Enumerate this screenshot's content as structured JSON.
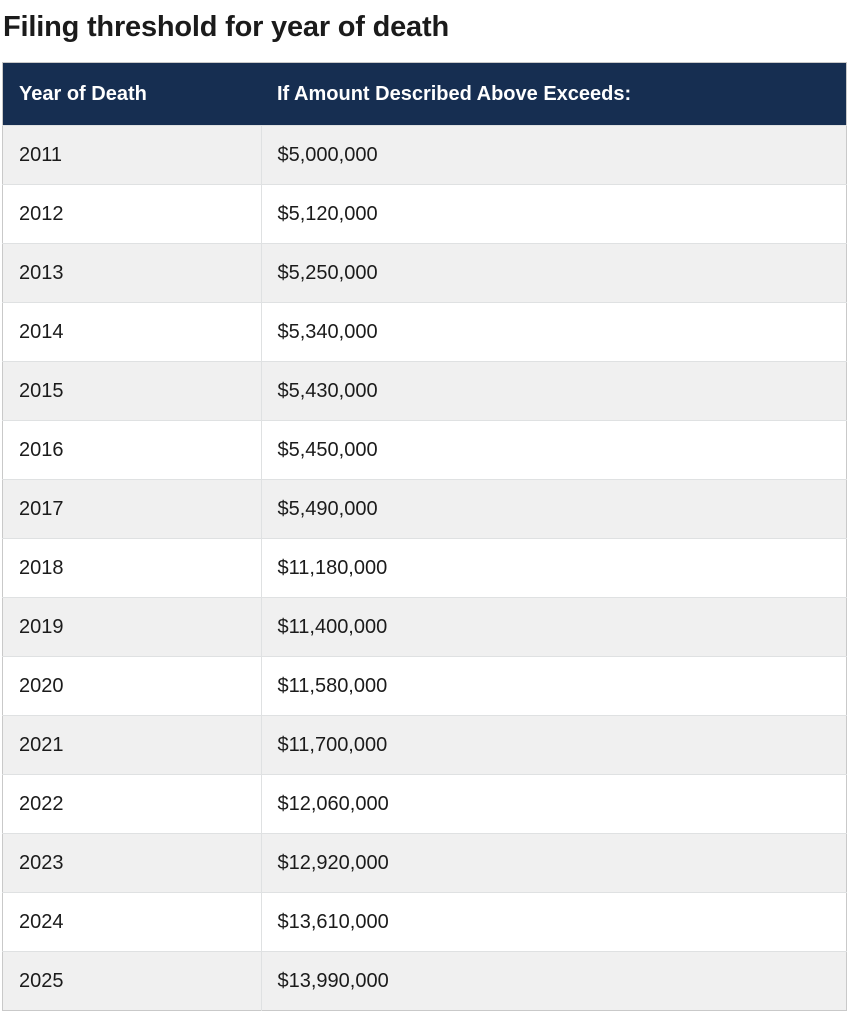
{
  "page": {
    "title": "Filing threshold for year of death"
  },
  "table": {
    "columns": [
      "Year of Death",
      "If Amount Described Above Exceeds:"
    ],
    "rows": [
      {
        "year": "2011",
        "amount": "$5,000,000"
      },
      {
        "year": "2012",
        "amount": "$5,120,000"
      },
      {
        "year": "2013",
        "amount": "$5,250,000"
      },
      {
        "year": "2014",
        "amount": "$5,340,000"
      },
      {
        "year": "2015",
        "amount": "$5,430,000"
      },
      {
        "year": "2016",
        "amount": "$5,450,000"
      },
      {
        "year": "2017",
        "amount": "$5,490,000"
      },
      {
        "year": "2018",
        "amount": "$11,180,000"
      },
      {
        "year": "2019",
        "amount": "$11,400,000"
      },
      {
        "year": "2020",
        "amount": "$11,580,000"
      },
      {
        "year": "2021",
        "amount": "$11,700,000"
      },
      {
        "year": "2022",
        "amount": "$12,060,000"
      },
      {
        "year": "2023",
        "amount": "$12,920,000"
      },
      {
        "year": "2024",
        "amount": "$13,610,000"
      },
      {
        "year": "2025",
        "amount": "$13,990,000"
      }
    ]
  },
  "colors": {
    "header_background": "#162e51",
    "header_text": "#ffffff",
    "stripe_row_background": "#f0f0f0",
    "plain_row_background": "#ffffff",
    "row_border": "#dfe1e2",
    "outer_border": "#c9c9c9",
    "body_text": "#1b1b1b"
  },
  "chart_data": {
    "type": "table",
    "title": "Filing threshold for year of death",
    "columns": [
      "Year of Death",
      "If Amount Described Above Exceeds:"
    ],
    "x": [
      2011,
      2012,
      2013,
      2014,
      2015,
      2016,
      2017,
      2018,
      2019,
      2020,
      2021,
      2022,
      2023,
      2024,
      2025
    ],
    "values": [
      5000000,
      5120000,
      5250000,
      5340000,
      5430000,
      5450000,
      5490000,
      11180000,
      11400000,
      11580000,
      11700000,
      12060000,
      12920000,
      13610000,
      13990000
    ]
  }
}
